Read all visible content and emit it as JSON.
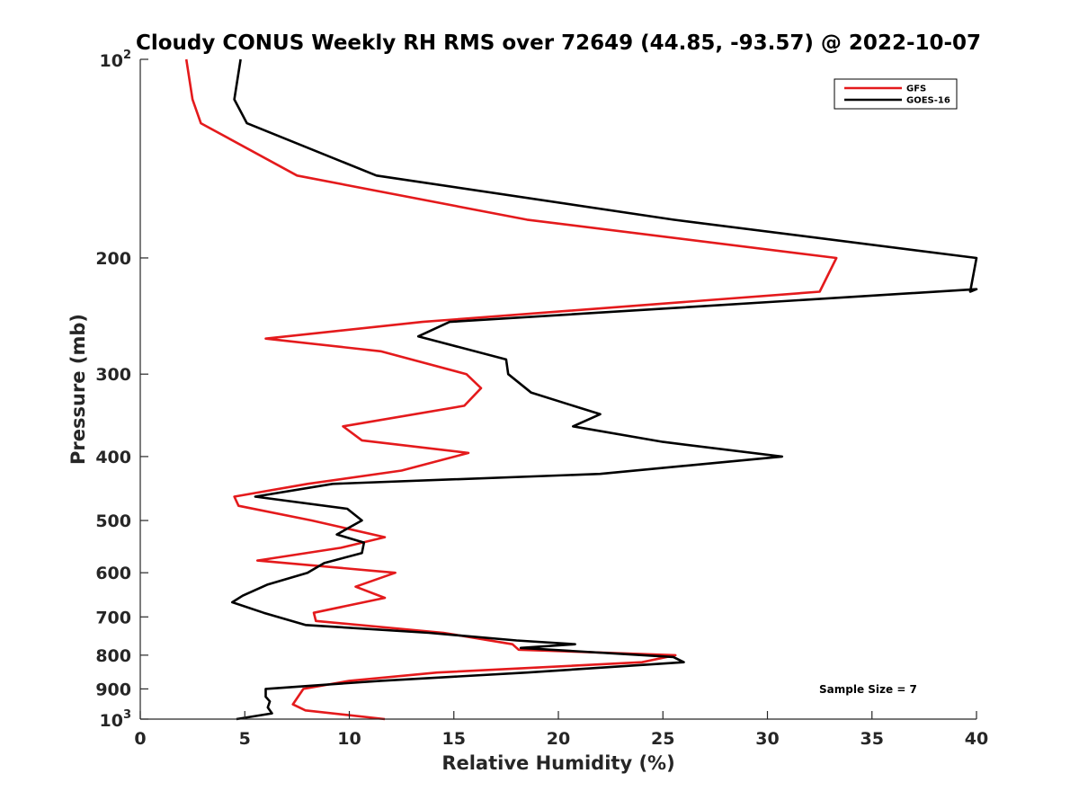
{
  "chart_data": {
    "type": "line",
    "title": "Cloudy CONUS Weekly RH RMS over 72649 (44.85, -93.57) @ 2022-10-07",
    "xlabel": "Relative Humidity (%)",
    "ylabel": "Pressure (mb)",
    "xlim": [
      0,
      40
    ],
    "ylim": [
      100,
      1000
    ],
    "y_scale": "log",
    "y_reversed": true,
    "grid": false,
    "legend_position": "top-right",
    "x_ticks": [
      "0",
      "5",
      "10",
      "15",
      "20",
      "25",
      "30",
      "35",
      "40"
    ],
    "y_ticks": [
      {
        "value": 100,
        "base": "10",
        "exp": "2"
      },
      {
        "value": 200,
        "label": "200"
      },
      {
        "value": 300,
        "label": "300"
      },
      {
        "value": 400,
        "label": "400"
      },
      {
        "value": 500,
        "label": "500"
      },
      {
        "value": 600,
        "label": "600"
      },
      {
        "value": 700,
        "label": "700"
      },
      {
        "value": 800,
        "label": "800"
      },
      {
        "value": 900,
        "label": "900"
      },
      {
        "value": 1000,
        "base": "10",
        "exp": "3"
      }
    ],
    "annotation": "Sample Size = 7",
    "series": [
      {
        "name": "GFS",
        "color": "#e41a1c",
        "points": [
          [
            2.2,
            100
          ],
          [
            2.5,
            115
          ],
          [
            2.9,
            125
          ],
          [
            7.5,
            150
          ],
          [
            18.5,
            175
          ],
          [
            33.3,
            200
          ],
          [
            32.5,
            225
          ],
          [
            13.5,
            250
          ],
          [
            6.0,
            265
          ],
          [
            11.5,
            277
          ],
          [
            15.6,
            300
          ],
          [
            16.3,
            315
          ],
          [
            15.5,
            335
          ],
          [
            9.7,
            360
          ],
          [
            10.6,
            378
          ],
          [
            15.7,
            395
          ],
          [
            12.5,
            420
          ],
          [
            8.0,
            440
          ],
          [
            4.5,
            460
          ],
          [
            4.7,
            475
          ],
          [
            8.2,
            500
          ],
          [
            11.7,
            530
          ],
          [
            9.6,
            550
          ],
          [
            5.6,
            575
          ],
          [
            12.2,
            600
          ],
          [
            10.3,
            630
          ],
          [
            11.7,
            655
          ],
          [
            8.3,
            690
          ],
          [
            8.4,
            710
          ],
          [
            14.5,
            740
          ],
          [
            17.8,
            770
          ],
          [
            18.1,
            785
          ],
          [
            25.6,
            800
          ],
          [
            24.0,
            820
          ],
          [
            14.2,
            850
          ],
          [
            10.0,
            875
          ],
          [
            7.8,
            900
          ],
          [
            7.3,
            950
          ],
          [
            7.9,
            970
          ],
          [
            11.7,
            1000
          ]
        ]
      },
      {
        "name": "GOES-16",
        "color": "#000000",
        "points": [
          [
            4.8,
            100
          ],
          [
            4.5,
            115
          ],
          [
            5.1,
            125
          ],
          [
            11.3,
            150
          ],
          [
            25.5,
            175
          ],
          [
            40.0,
            200
          ],
          [
            39.7,
            225
          ],
          [
            40.0,
            223
          ],
          [
            14.8,
            250
          ],
          [
            13.3,
            263
          ],
          [
            17.5,
            285
          ],
          [
            17.6,
            300
          ],
          [
            18.7,
            320
          ],
          [
            22.0,
            345
          ],
          [
            20.7,
            360
          ],
          [
            25.0,
            380
          ],
          [
            30.7,
            400
          ],
          [
            22.0,
            425
          ],
          [
            9.2,
            440
          ],
          [
            5.5,
            460
          ],
          [
            9.9,
            480
          ],
          [
            10.6,
            500
          ],
          [
            9.4,
            525
          ],
          [
            10.7,
            540
          ],
          [
            10.6,
            560
          ],
          [
            8.8,
            580
          ],
          [
            8.0,
            600
          ],
          [
            6.1,
            625
          ],
          [
            4.9,
            650
          ],
          [
            4.4,
            665
          ],
          [
            5.9,
            690
          ],
          [
            7.9,
            720
          ],
          [
            13.8,
            740
          ],
          [
            18.0,
            760
          ],
          [
            20.8,
            770
          ],
          [
            18.2,
            780
          ],
          [
            25.5,
            805
          ],
          [
            26.0,
            820
          ],
          [
            18.5,
            850
          ],
          [
            11.5,
            875
          ],
          [
            6.0,
            900
          ],
          [
            6.0,
            925
          ],
          [
            6.2,
            940
          ],
          [
            6.1,
            960
          ],
          [
            6.3,
            980
          ],
          [
            4.6,
            1000
          ]
        ]
      }
    ]
  }
}
